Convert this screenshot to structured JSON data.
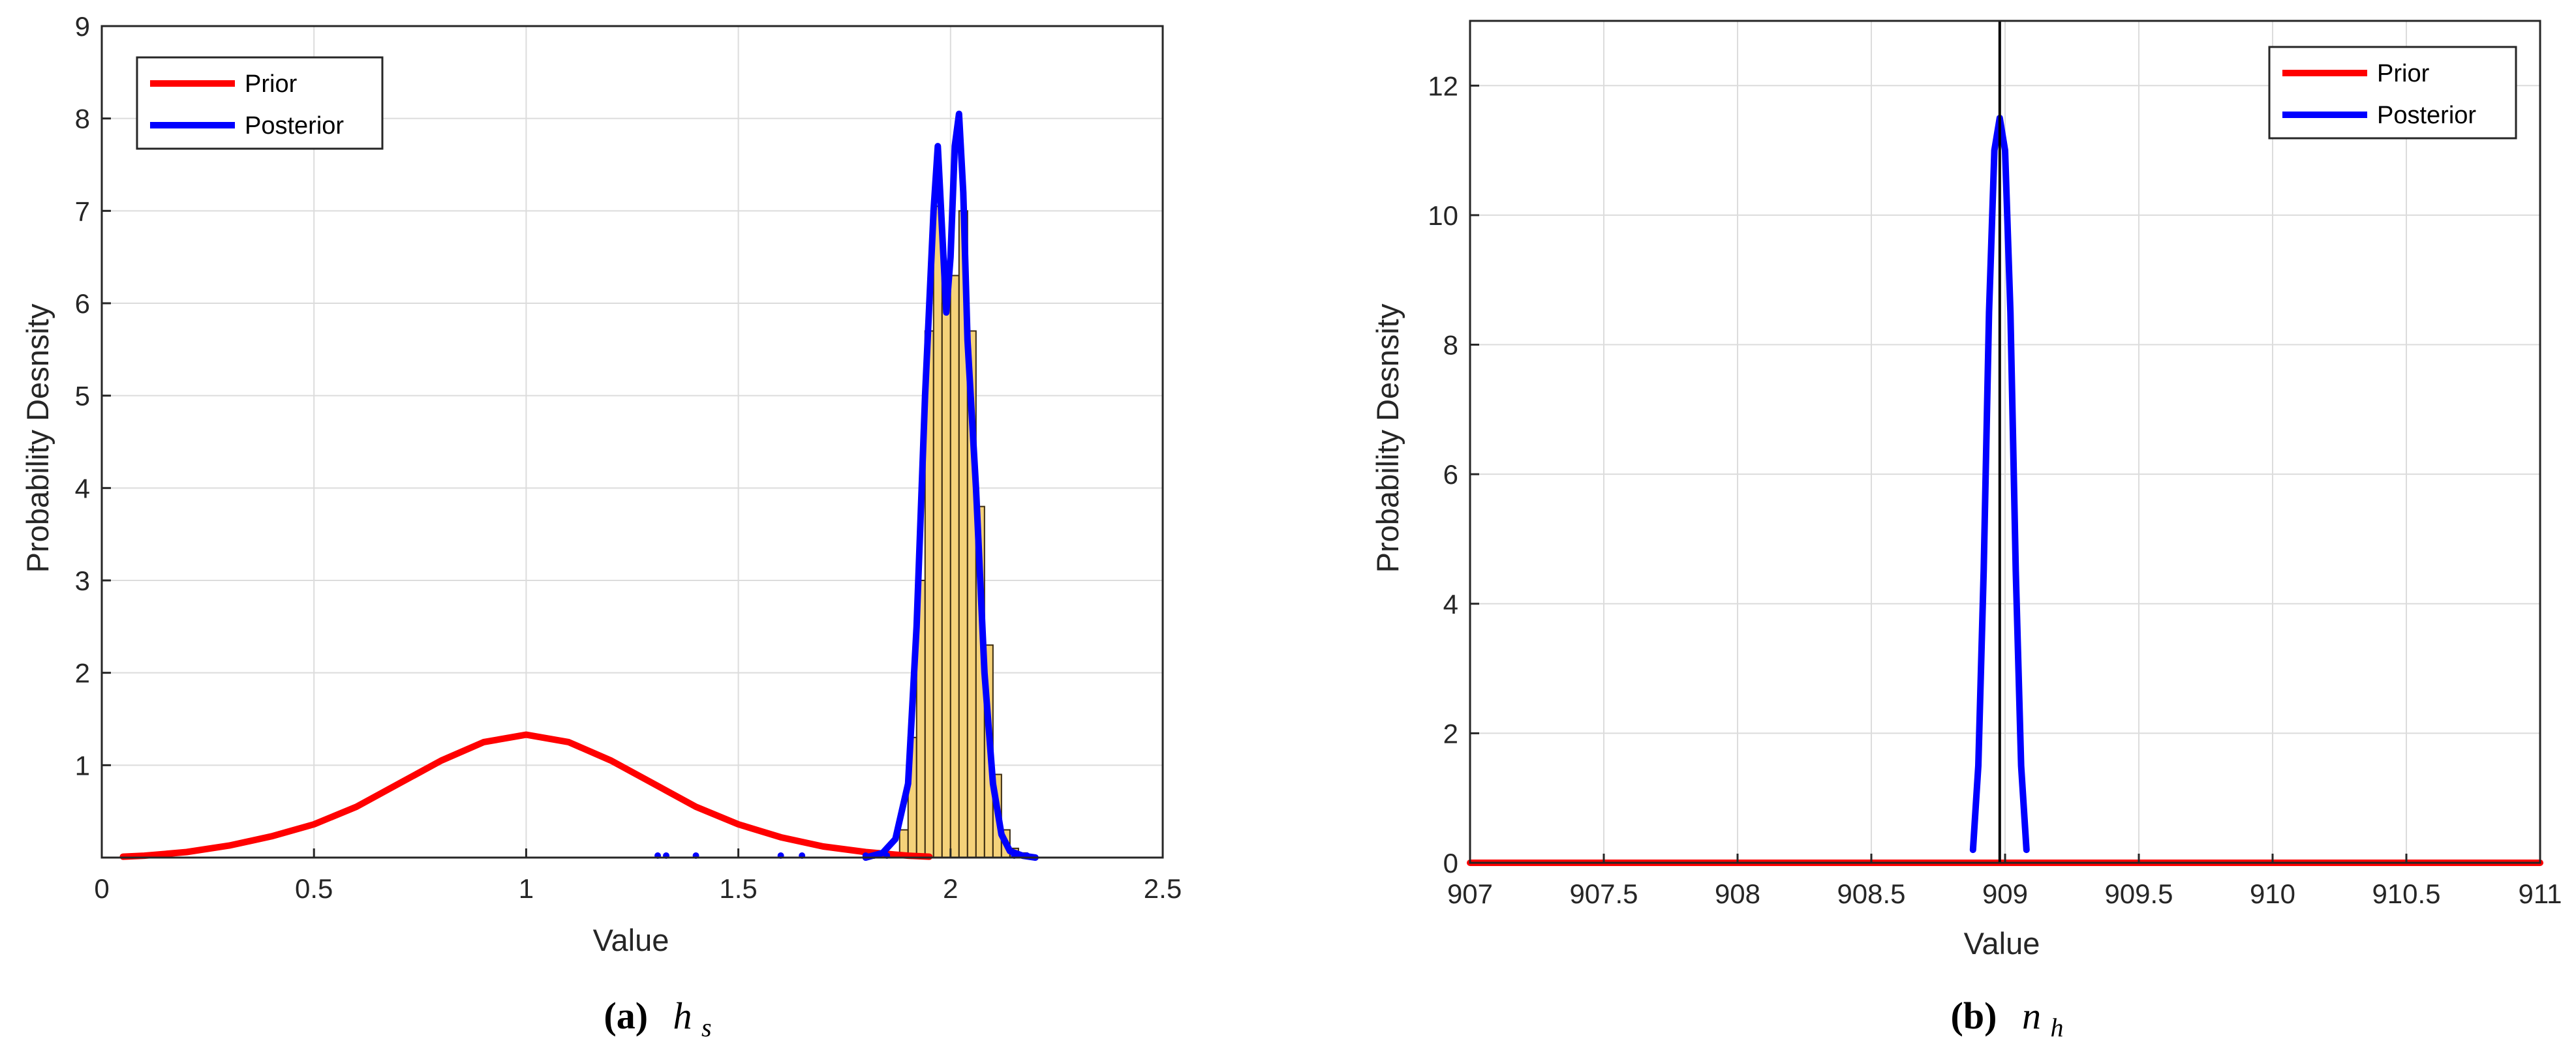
{
  "chart_data": [
    {
      "type": "line",
      "panel": "a",
      "caption_letter": "(a)",
      "caption_symbol": "h",
      "caption_subscript": "s",
      "xlabel": "Value",
      "ylabel": "Probability Desnsity",
      "xlim": [
        0,
        2.5
      ],
      "ylim": [
        0,
        9
      ],
      "xticks": [
        0,
        0.5,
        1,
        1.5,
        2,
        2.5
      ],
      "xtick_labels": [
        "0",
        "0.5",
        "1",
        "1.5",
        "2",
        "2.5"
      ],
      "yticks": [
        1,
        2,
        3,
        4,
        5,
        6,
        7,
        8,
        9
      ],
      "ytick_labels": [
        "1",
        "2",
        "3",
        "4",
        "5",
        "6",
        "7",
        "8",
        "9"
      ],
      "grid": true,
      "legend_position": "top-left",
      "series": [
        {
          "name": "Prior",
          "color": "#ff0000",
          "x": [
            0.05,
            0.1,
            0.2,
            0.3,
            0.4,
            0.5,
            0.6,
            0.7,
            0.8,
            0.9,
            1.0,
            1.1,
            1.2,
            1.3,
            1.4,
            1.5,
            1.6,
            1.7,
            1.8,
            1.85,
            1.9,
            1.95
          ],
          "y": [
            0.01,
            0.02,
            0.06,
            0.13,
            0.23,
            0.36,
            0.55,
            0.8,
            1.05,
            1.25,
            1.33,
            1.25,
            1.05,
            0.8,
            0.55,
            0.36,
            0.22,
            0.12,
            0.06,
            0.04,
            0.02,
            0.01
          ]
        },
        {
          "name": "Posterior",
          "color": "#0000ff",
          "x": [
            1.8,
            1.84,
            1.87,
            1.9,
            1.92,
            1.94,
            1.96,
            1.97,
            1.98,
            1.99,
            2.0,
            2.01,
            2.02,
            2.03,
            2.04,
            2.06,
            2.08,
            2.1,
            2.12,
            2.14,
            2.17,
            2.2
          ],
          "y": [
            0.0,
            0.05,
            0.2,
            0.8,
            2.5,
            5.0,
            7.0,
            7.7,
            6.8,
            5.9,
            6.5,
            7.7,
            8.05,
            7.2,
            5.6,
            4.0,
            2.0,
            0.8,
            0.25,
            0.07,
            0.02,
            0.0
          ]
        }
      ],
      "histogram": {
        "color": "#f5d27a",
        "bin_edges": [
          1.88,
          1.9,
          1.92,
          1.94,
          1.96,
          1.98,
          2.0,
          2.02,
          2.04,
          2.06,
          2.08,
          2.1,
          2.12,
          2.14,
          2.16,
          2.18
        ],
        "heights": [
          0.3,
          1.3,
          3.0,
          5.7,
          7.05,
          6.0,
          6.3,
          7.0,
          5.7,
          3.8,
          2.3,
          0.9,
          0.3,
          0.1,
          0.05
        ]
      },
      "sample_points_x": [
        1.31,
        1.33,
        1.4,
        1.6,
        1.65,
        1.8,
        1.82,
        1.85,
        2.15,
        2.18
      ]
    },
    {
      "type": "line",
      "panel": "b",
      "caption_letter": "(b)",
      "caption_symbol": "n",
      "caption_subscript": "h",
      "xlabel": "Value",
      "ylabel": "Probability Desnsity",
      "xlim": [
        907,
        911
      ],
      "ylim": [
        0,
        13
      ],
      "xticks": [
        907,
        907.5,
        908,
        908.5,
        909,
        909.5,
        910,
        910.5,
        911
      ],
      "xtick_labels": [
        "907",
        "907.5",
        "908",
        "908.5",
        "909",
        "909.5",
        "910",
        "910.5",
        "911"
      ],
      "yticks": [
        0,
        2,
        4,
        6,
        8,
        10,
        12
      ],
      "ytick_labels": [
        "0",
        "2",
        "4",
        "6",
        "8",
        "10",
        "12"
      ],
      "grid": true,
      "legend_position": "top-right",
      "reference_line_x": 908.98,
      "series": [
        {
          "name": "Prior",
          "color": "#ff0000",
          "x": [
            907,
            911
          ],
          "y": [
            0,
            0
          ]
        },
        {
          "name": "Posterior",
          "color": "#0000ff",
          "x": [
            908.88,
            908.9,
            908.92,
            908.94,
            908.96,
            908.98,
            909.0,
            909.02,
            909.04,
            909.06,
            909.08
          ],
          "y": [
            0.2,
            1.5,
            4.5,
            8.5,
            11.0,
            11.5,
            11.0,
            8.5,
            4.5,
            1.5,
            0.2
          ]
        }
      ]
    }
  ]
}
